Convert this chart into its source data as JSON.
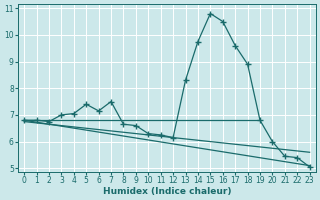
{
  "xlabel": "Humidex (Indice chaleur)",
  "background_color": "#cce8ea",
  "line_color": "#1a6b6b",
  "grid_color": "#ffffff",
  "xlim": [
    -0.5,
    23.5
  ],
  "ylim": [
    4.85,
    11.15
  ],
  "xticks": [
    0,
    1,
    2,
    3,
    4,
    5,
    6,
    7,
    8,
    9,
    10,
    11,
    12,
    13,
    14,
    15,
    16,
    17,
    18,
    19,
    20,
    21,
    22,
    23
  ],
  "yticks": [
    5,
    6,
    7,
    8,
    9,
    10,
    11
  ],
  "curve_x": [
    0,
    1,
    2,
    3,
    4,
    5,
    6,
    7,
    8,
    9,
    10,
    11,
    12,
    13,
    14,
    15,
    16,
    17,
    18,
    19,
    20,
    21,
    22,
    23
  ],
  "curve_y": [
    6.8,
    6.8,
    6.75,
    7.0,
    7.05,
    7.4,
    7.15,
    7.5,
    6.65,
    6.6,
    6.3,
    6.25,
    6.15,
    8.3,
    9.75,
    10.8,
    10.5,
    9.6,
    8.9,
    6.8,
    6.0,
    5.45,
    5.4,
    5.05
  ],
  "trend1_x": [
    0,
    19
  ],
  "trend1_y": [
    6.8,
    6.8
  ],
  "trend2_x": [
    0,
    23
  ],
  "trend2_y": [
    6.8,
    5.1
  ],
  "trend3_x": [
    0,
    23
  ],
  "trend3_y": [
    6.75,
    5.6
  ]
}
